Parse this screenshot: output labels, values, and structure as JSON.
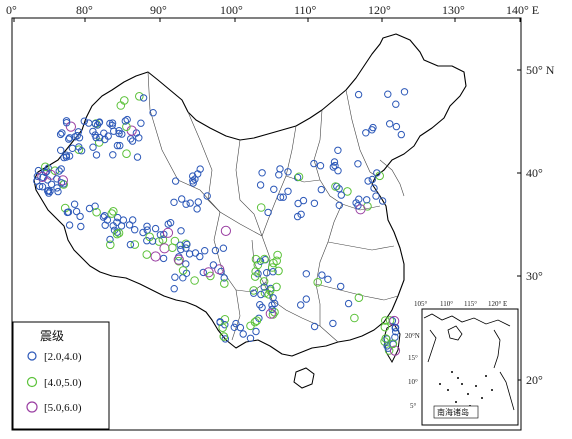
{
  "top_axis": {
    "labels": [
      "0°",
      "80°",
      "90°",
      "100°",
      "110°",
      "120°",
      "130°",
      "140° E"
    ]
  },
  "right_axis": {
    "labels": [
      "50° N",
      "40°",
      "30°",
      "20°"
    ]
  },
  "inset": {
    "title": "南海诸岛",
    "top_labels": [
      "105°",
      "110°",
      "115°",
      "120° E"
    ],
    "left_labels": [
      "20°N",
      "15°",
      "10°",
      "5°"
    ]
  },
  "legend": {
    "title": "震级",
    "items": [
      {
        "label": "[2.0,4.0)",
        "color": "#2c58b8"
      },
      {
        "label": "[4.0,5.0)",
        "color": "#5cc23a"
      },
      {
        "label": "[5.0,6.0)",
        "color": "#9a3fa2"
      }
    ]
  }
}
